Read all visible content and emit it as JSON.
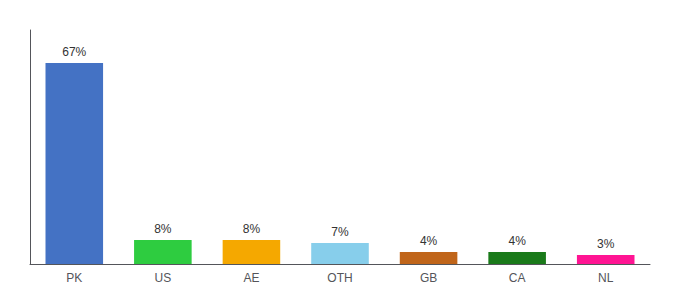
{
  "chart_data": {
    "type": "bar",
    "categories": [
      "PK",
      "US",
      "AE",
      "OTH",
      "GB",
      "CA",
      "NL"
    ],
    "values": [
      67,
      8,
      8,
      7,
      4,
      4,
      3
    ],
    "value_labels": [
      "67%",
      "8%",
      "8%",
      "7%",
      "4%",
      "4%",
      "3%"
    ],
    "colors": [
      "#4472c4",
      "#2ecc40",
      "#f5a800",
      "#87ceeb",
      "#c0651a",
      "#1a7a1a",
      "#ff1493"
    ],
    "ylim": [
      0,
      78
    ],
    "grid": false,
    "data_labels": true,
    "tick_labels": "x"
  }
}
